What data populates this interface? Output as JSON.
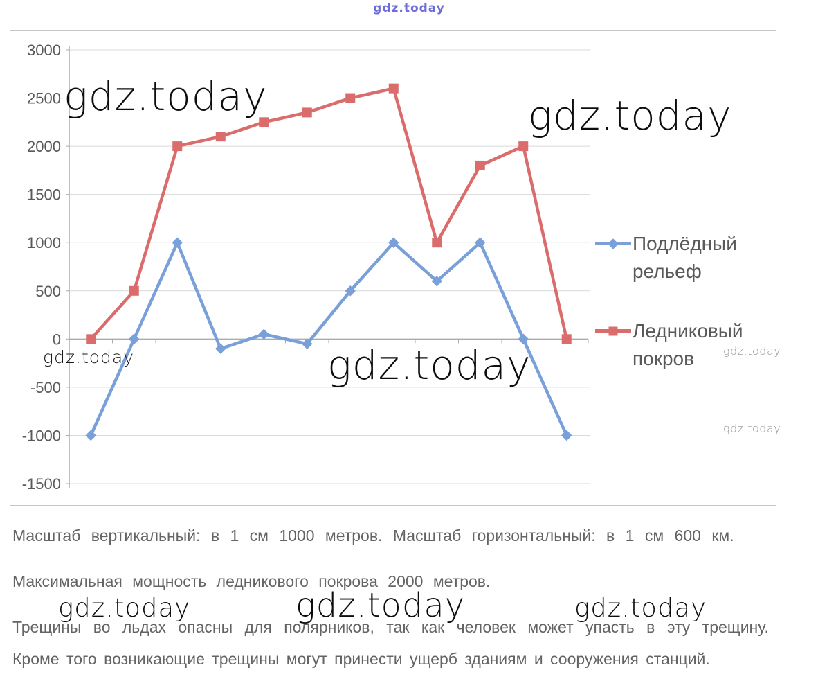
{
  "watermark": {
    "brand": "gdz.today"
  },
  "chart_data": {
    "type": "line",
    "title": "",
    "x": [
      1,
      2,
      3,
      4,
      5,
      6,
      7,
      8,
      9,
      10,
      11,
      12
    ],
    "xaxis_labels_visible": false,
    "series": [
      {
        "name": "Подлёдный рельеф",
        "color": "#7AA0D9",
        "marker": "diamond",
        "values": [
          -1000,
          0,
          1000,
          -100,
          50,
          -50,
          500,
          1000,
          600,
          1000,
          0,
          -1000
        ]
      },
      {
        "name": "Ледниковый покров",
        "color": "#DB6C6C",
        "marker": "square",
        "values": [
          0,
          500,
          2000,
          2100,
          2250,
          2350,
          2500,
          2600,
          1000,
          1800,
          2000,
          0
        ]
      }
    ],
    "ylim": [
      -1500,
      3000
    ],
    "ytick_step": 500,
    "yticks": [
      3000,
      2500,
      2000,
      1500,
      1000,
      500,
      0,
      -500,
      -1000,
      -1500
    ],
    "grid": true,
    "legend_position": "right",
    "axis_color": "#ababab",
    "grid_color": "#d9d9d9",
    "tick_label_color": "#595959"
  },
  "paragraphs": {
    "scale": "Масштаб вертикальный: в 1 см 1000 метров. Масштаб горизонтальный: в 1 см 600 км.",
    "max_thickness": "Максимальная мощность ледникового покрова 2000 метров.",
    "cracks": "Трещины во льдах опасны для полярников, так как человек может упасть в эту трещину.",
    "damage": "Кроме того возникающие трещины могут принести ущерб зданиям и сооружения станций."
  }
}
